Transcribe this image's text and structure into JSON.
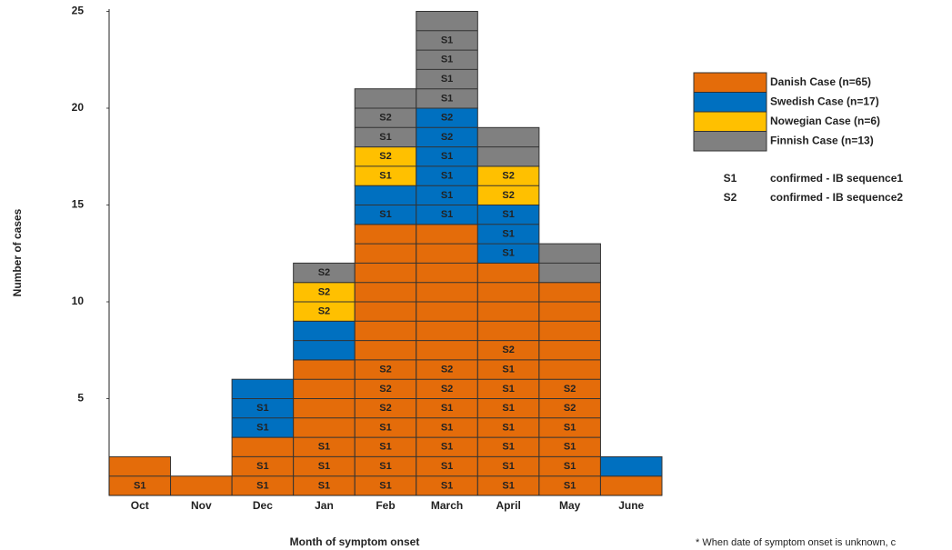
{
  "chart_data": {
    "type": "bar",
    "stacked": true,
    "x_label": "Month of symptom onset",
    "y_label": "Number of cases",
    "categories": [
      "Oct",
      "Nov",
      "Dec",
      "Jan",
      "Feb",
      "March",
      "April",
      "May",
      "June"
    ],
    "ylim": [
      0,
      25
    ],
    "yticks": [
      5,
      10,
      15,
      20,
      25
    ],
    "grid": false,
    "series": [
      {
        "name": "Danish Case (n=65)",
        "color": "#e46c0a",
        "values": [
          2,
          1,
          3,
          7,
          14,
          14,
          12,
          11,
          1
        ],
        "cell_labels": [
          [
            "S1",
            null
          ],
          [
            null
          ],
          [
            "S1",
            "S1",
            null
          ],
          [
            "S1",
            "S1",
            "S1",
            null,
            null,
            null,
            null
          ],
          [
            "S1",
            "S1",
            "S1",
            "S1",
            "S2",
            "S2",
            "S2",
            null,
            null,
            null,
            null,
            null,
            null,
            null
          ],
          [
            "S1",
            "S1",
            "S1",
            "S1",
            "S1",
            "S2",
            "S2",
            null,
            null,
            null,
            null,
            null,
            null,
            null
          ],
          [
            "S1",
            "S1",
            "S1",
            "S1",
            "S1",
            "S1",
            "S1",
            "S2",
            null,
            null,
            null,
            null
          ],
          [
            "S1",
            "S1",
            "S1",
            "S1",
            "S2",
            "S2",
            null,
            null,
            null,
            null,
            null
          ],
          [
            null
          ]
        ]
      },
      {
        "name": "Swedish Case (n=17)",
        "color": "#0070c0",
        "values": [
          0,
          0,
          3,
          2,
          2,
          6,
          3,
          0,
          1
        ],
        "cell_labels": [
          [],
          [],
          [
            "S1",
            "S1",
            null
          ],
          [
            null,
            null
          ],
          [
            "S1",
            null
          ],
          [
            "S1",
            "S1",
            "S1",
            "S1",
            "S2",
            "S2"
          ],
          [
            "S1",
            "S1",
            "S1"
          ],
          [],
          [
            null
          ]
        ]
      },
      {
        "name": "Nowegian Case (n=6)",
        "color": "#ffc000",
        "values": [
          0,
          0,
          0,
          2,
          2,
          0,
          2,
          0,
          0
        ],
        "cell_labels": [
          [],
          [],
          [],
          [
            "S2",
            "S2"
          ],
          [
            "S1",
            "S2"
          ],
          [],
          [
            "S2",
            "S2"
          ],
          [],
          []
        ]
      },
      {
        "name": "Finnish Case (n=13)",
        "color": "#808080",
        "values": [
          0,
          0,
          0,
          1,
          3,
          5,
          2,
          2,
          0
        ],
        "cell_labels": [
          [],
          [],
          [],
          [
            "S2"
          ],
          [
            "S1",
            "S2",
            null
          ],
          [
            "S1",
            "S1",
            "S1",
            "S1",
            null
          ],
          [
            null,
            null
          ],
          [
            null,
            null
          ],
          []
        ]
      }
    ],
    "legend_position": "right",
    "sequence_legend": [
      {
        "code": "S1",
        "text": "confirmed - IB sequence1"
      },
      {
        "code": "S2",
        "text": "confirmed - IB sequence2"
      }
    ],
    "footnote": "* When date of symptom onset is unknown, c"
  }
}
